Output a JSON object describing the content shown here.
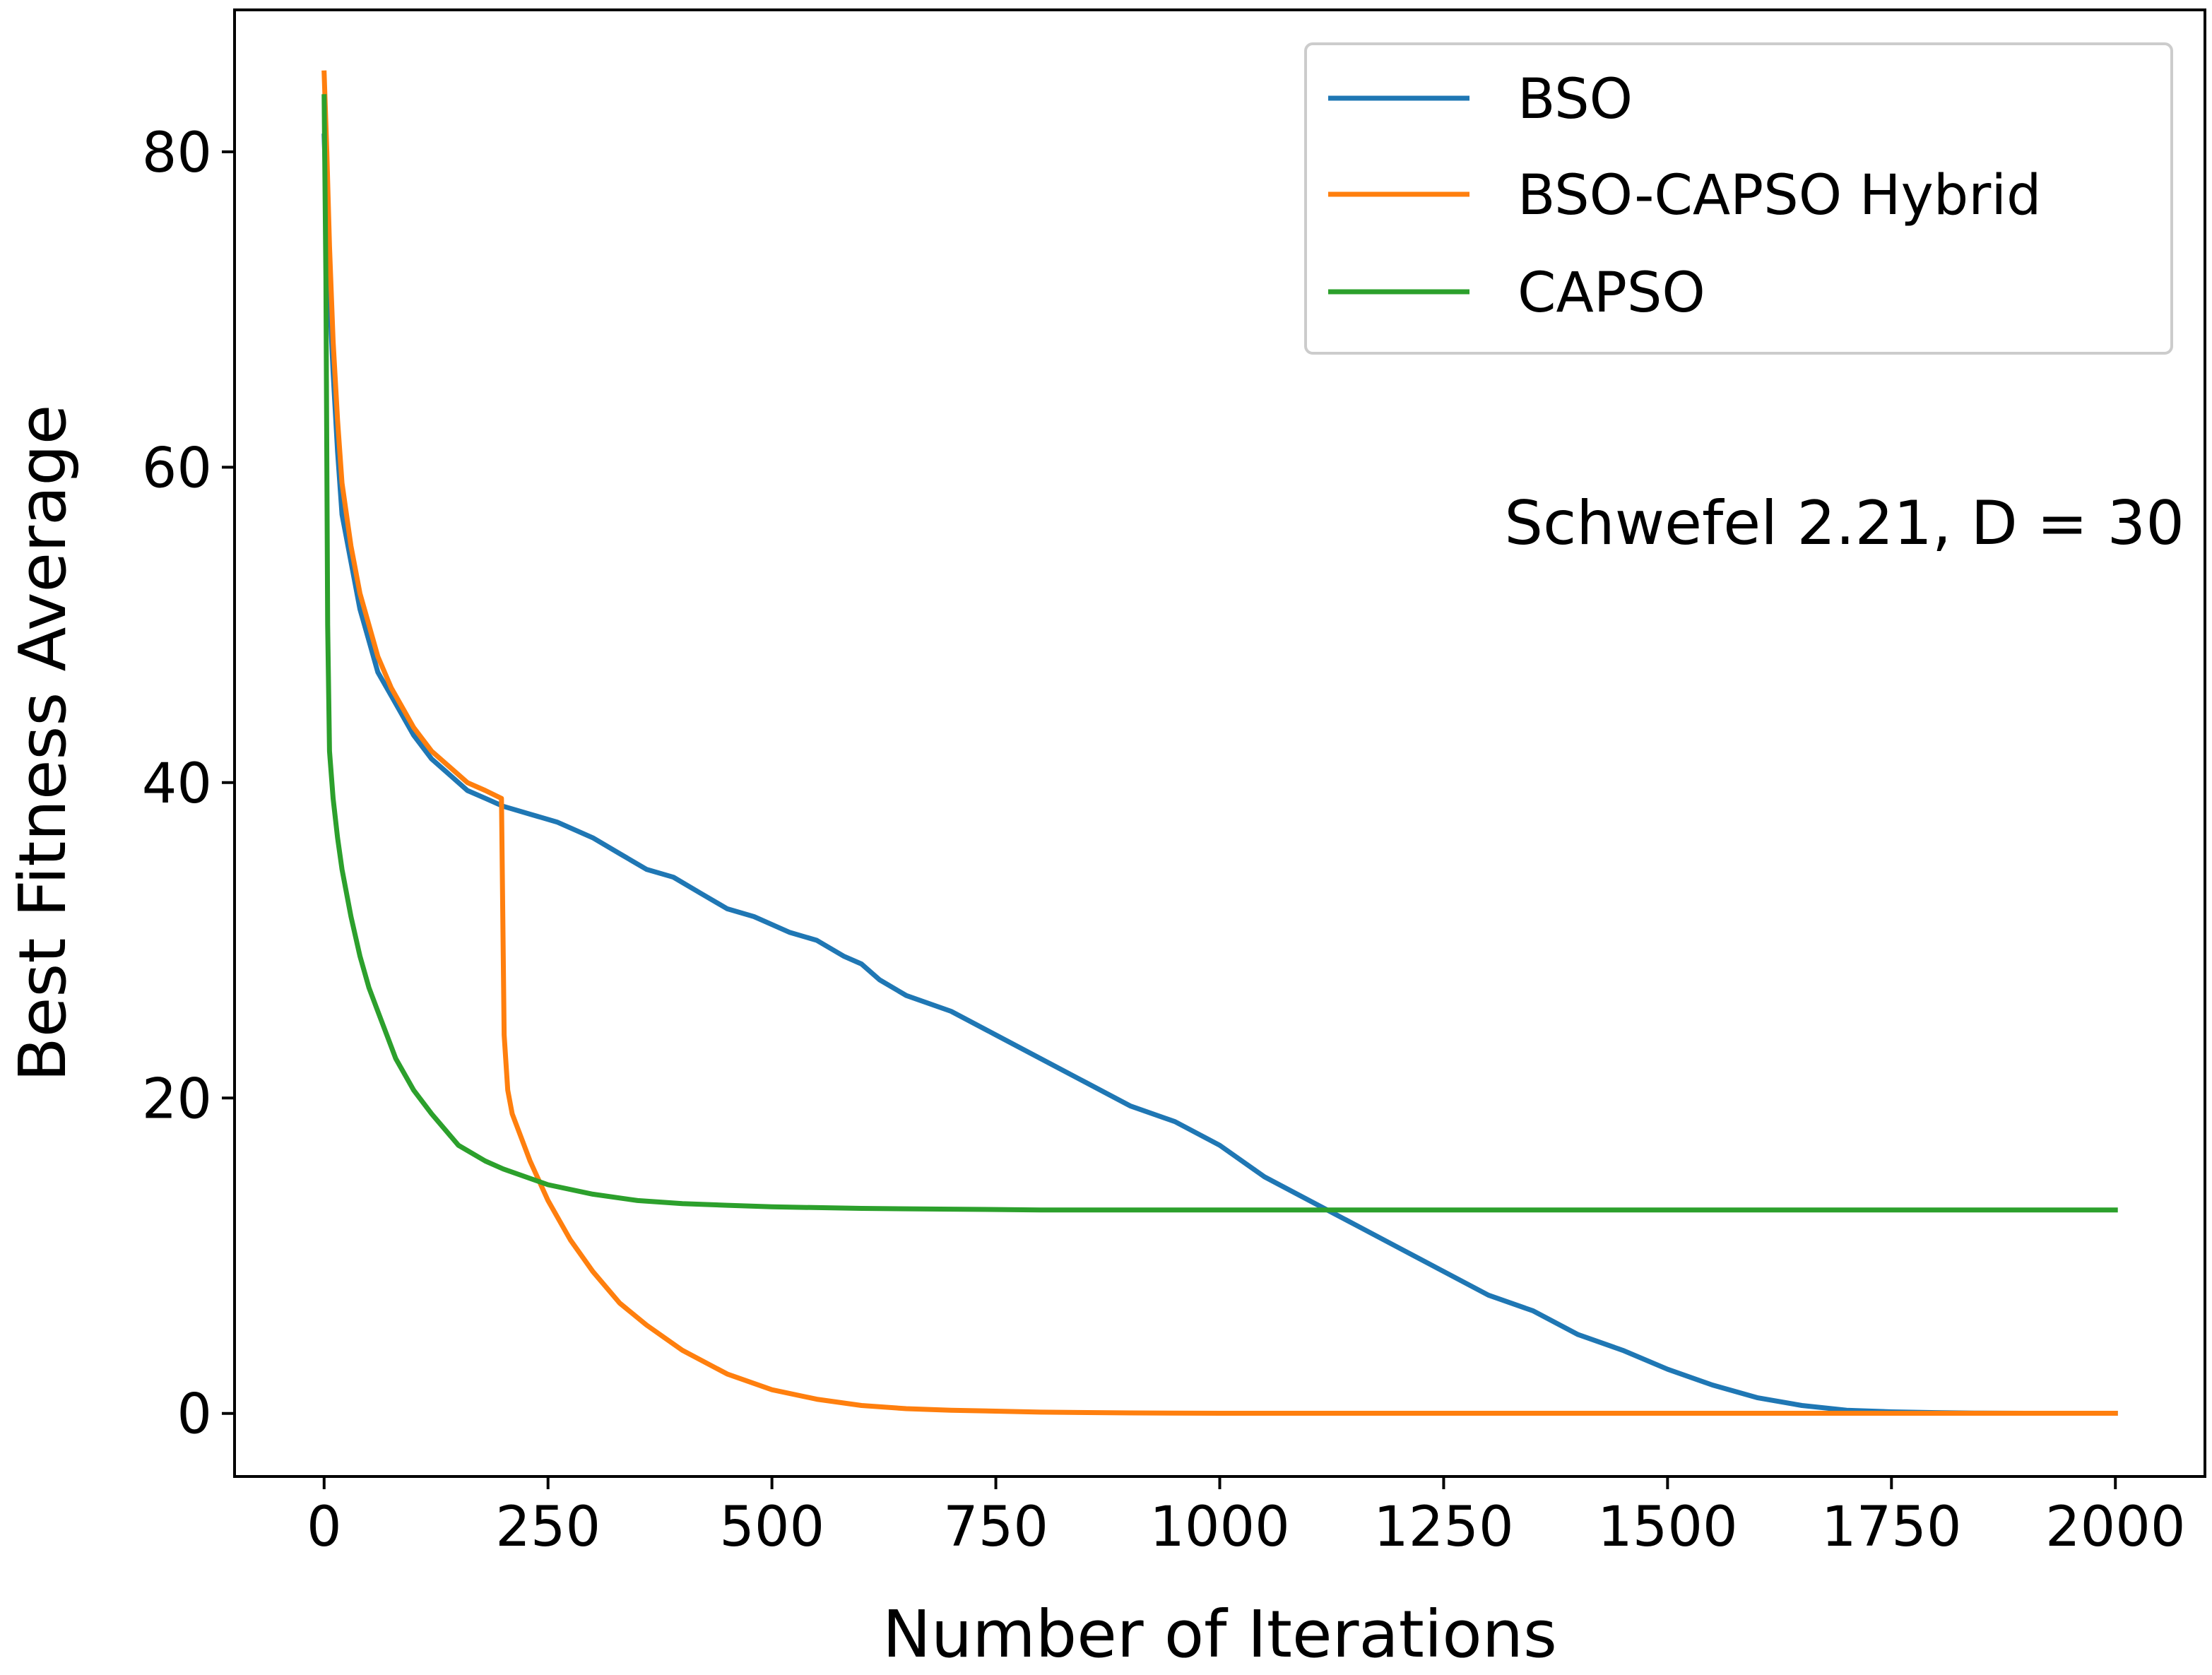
{
  "chart_data": {
    "type": "line",
    "title": "",
    "xlabel": "Number of Iterations",
    "ylabel": "Best Fitness Average",
    "xlim": [
      -100,
      2100
    ],
    "ylim": [
      -4,
      89
    ],
    "xticks": [
      0,
      250,
      500,
      750,
      1000,
      1250,
      1500,
      1750,
      2000
    ],
    "xtick_labels": [
      "0",
      "250",
      "500",
      "750",
      "1000",
      "1250",
      "1500",
      "1750",
      "2000"
    ],
    "yticks": [
      0,
      20,
      40,
      60,
      80
    ],
    "ytick_labels": [
      "0",
      "20",
      "40",
      "60",
      "80"
    ],
    "grid": false,
    "legend_position": "top-right",
    "annotation": "Schwefel 2.21, D = 30",
    "series": [
      {
        "name": "BSO",
        "color": "#1f77b4",
        "x": [
          0,
          3,
          6,
          10,
          15,
          20,
          30,
          40,
          50,
          60,
          75,
          90,
          100,
          120,
          140,
          160,
          180,
          200,
          230,
          260,
          300,
          330,
          360,
          390,
          420,
          450,
          480,
          500,
          520,
          550,
          580,
          600,
          620,
          650,
          700,
          750,
          800,
          850,
          900,
          950,
          1000,
          1050,
          1100,
          1150,
          1200,
          1250,
          1300,
          1350,
          1400,
          1450,
          1500,
          1550,
          1600,
          1650,
          1700,
          1750,
          1800,
          1850,
          1900,
          1950,
          2000
        ],
        "y": [
          81,
          76,
          71,
          66,
          61,
          57,
          54,
          51,
          49,
          47,
          45.5,
          44,
          43,
          41.5,
          40.5,
          39.5,
          39,
          38.5,
          38,
          37.5,
          36.5,
          35.5,
          34.5,
          34,
          33,
          32,
          31.5,
          31,
          30.5,
          30,
          29,
          28.5,
          27.5,
          26.5,
          25.5,
          24,
          22.5,
          21,
          19.5,
          18.5,
          17,
          15,
          13.5,
          12,
          10.5,
          9,
          7.5,
          6.5,
          5,
          4,
          2.8,
          1.8,
          1,
          0.5,
          0.2,
          0.1,
          0.05,
          0.02,
          0.01,
          0.01,
          0.01
        ]
      },
      {
        "name": "BSO-CAPSO Hybrid",
        "color": "#ff7f0e",
        "x": [
          0,
          3,
          6,
          10,
          15,
          20,
          30,
          40,
          50,
          60,
          75,
          90,
          100,
          120,
          140,
          160,
          180,
          198,
          201,
          205,
          210,
          220,
          230,
          250,
          275,
          300,
          330,
          360,
          400,
          450,
          500,
          550,
          600,
          650,
          700,
          800,
          900,
          1000,
          1200,
          1400,
          1600,
          1800,
          2000
        ],
        "y": [
          85,
          80,
          74,
          68,
          63,
          59,
          55,
          52,
          50,
          48,
          46,
          44.5,
          43.5,
          42,
          41,
          40,
          39.5,
          39,
          24,
          20.5,
          19,
          17.5,
          16,
          13.5,
          11,
          9,
          7,
          5.6,
          4,
          2.5,
          1.5,
          0.9,
          0.5,
          0.3,
          0.2,
          0.08,
          0.03,
          0.01,
          0.01,
          0.01,
          0.01,
          0.01,
          0.01
        ]
      },
      {
        "name": "CAPSO",
        "color": "#2ca02c",
        "x": [
          0,
          2,
          4,
          6,
          10,
          15,
          20,
          30,
          40,
          50,
          60,
          80,
          100,
          120,
          150,
          180,
          200,
          250,
          300,
          350,
          400,
          450,
          500,
          600,
          700,
          800,
          1000,
          1200,
          1500,
          1800,
          2000
        ],
        "y": [
          83.5,
          72,
          50,
          42,
          39,
          36.5,
          34.5,
          31.5,
          29,
          27,
          25.5,
          22.5,
          20.5,
          19,
          17,
          16,
          15.5,
          14.5,
          13.9,
          13.5,
          13.3,
          13.2,
          13.1,
          13.0,
          12.95,
          12.9,
          12.9,
          12.9,
          12.9,
          12.9,
          12.9
        ]
      }
    ]
  }
}
